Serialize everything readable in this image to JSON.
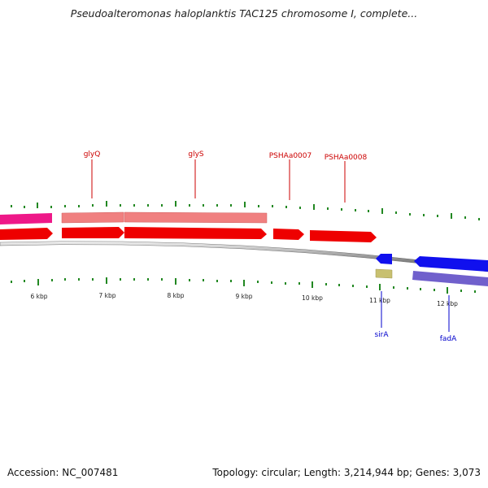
{
  "title": "Pseudoalteromonas haloplanktis TAC125 chromosome I, complete...",
  "footer": {
    "accession": "Accession: NC_007481",
    "summary": "Topology: circular; Length: 3,214,944 bp; Genes: 3,073"
  },
  "colors": {
    "forward_gene": "#ee0000",
    "forward_rna": "#f08080",
    "forward_magenta": "#ee1888",
    "reverse_gene": "#1010ee",
    "reverse_rna": "#7060cc",
    "reverse_khaki": "#c8c070",
    "tick": "#228822",
    "forward_label": "#cc0000",
    "reverse_label": "#0000cc",
    "backbone": "#888888"
  },
  "ticks": [
    {
      "label": "6 kbp"
    },
    {
      "label": "7 kbp"
    },
    {
      "label": "8 kbp"
    },
    {
      "label": "9 kbp"
    },
    {
      "label": "10 kbp"
    },
    {
      "label": "11 kbp"
    },
    {
      "label": "12 kbp"
    }
  ],
  "forward_labels": [
    {
      "text": "glyQ"
    },
    {
      "text": "glyS"
    },
    {
      "text": "PSHAa0007"
    },
    {
      "text": "PSHAa0008"
    }
  ],
  "reverse_labels": [
    {
      "text": "sirA"
    },
    {
      "text": "fadA"
    }
  ]
}
